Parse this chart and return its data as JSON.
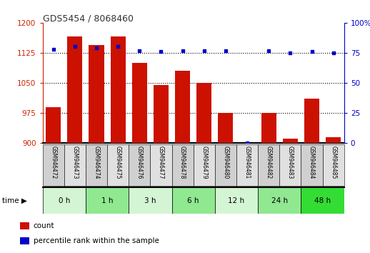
{
  "title": "GDS5454 / 8068460",
  "samples": [
    "GSM946472",
    "GSM946473",
    "GSM946474",
    "GSM946475",
    "GSM946476",
    "GSM946477",
    "GSM946478",
    "GSM946479",
    "GSM946480",
    "GSM946481",
    "GSM946482",
    "GSM946483",
    "GSM946484",
    "GSM946485"
  ],
  "counts": [
    990,
    1165,
    1145,
    1165,
    1100,
    1045,
    1080,
    1050,
    975,
    900,
    975,
    910,
    1010,
    915
  ],
  "percentiles": [
    78,
    80,
    79,
    80,
    77,
    76,
    77,
    77,
    77,
    0,
    77,
    75,
    76,
    75
  ],
  "groups": [
    {
      "label": "0 h",
      "indices": [
        0,
        1
      ]
    },
    {
      "label": "1 h",
      "indices": [
        2,
        3
      ]
    },
    {
      "label": "3 h",
      "indices": [
        4,
        5
      ]
    },
    {
      "label": "6 h",
      "indices": [
        6,
        7
      ]
    },
    {
      "label": "12 h",
      "indices": [
        8,
        9
      ]
    },
    {
      "label": "24 h",
      "indices": [
        10,
        11
      ]
    },
    {
      "label": "48 h",
      "indices": [
        12,
        13
      ]
    }
  ],
  "group_colors": [
    "#d4f5d4",
    "#90e890",
    "#d4f5d4",
    "#90e890",
    "#d4f5d4",
    "#90e890",
    "#33dd33"
  ],
  "ylim_left": [
    900,
    1200
  ],
  "ylim_right": [
    0,
    100
  ],
  "yticks_left": [
    900,
    975,
    1050,
    1125,
    1200
  ],
  "yticks_right": [
    0,
    25,
    50,
    75,
    100
  ],
  "bar_color": "#cc1100",
  "dot_color": "#0000cc",
  "background_color": "#ffffff",
  "title_color": "#333333",
  "left_axis_color": "#cc2200",
  "right_axis_color": "#0000cc",
  "gridline_ticks": [
    975,
    1050,
    1125
  ]
}
